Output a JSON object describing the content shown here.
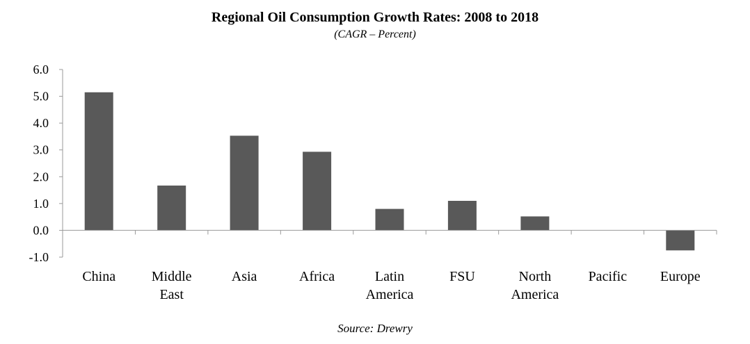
{
  "chart_data": {
    "type": "bar",
    "title": "Regional Oil Consumption Growth Rates: 2008 to 2018",
    "subtitle": "(CAGR – Percent)",
    "source": "Source: Drewry",
    "xlabel": "",
    "ylabel": "",
    "ylim": [
      -1.0,
      6.0
    ],
    "yticks": [
      6.0,
      5.0,
      4.0,
      3.0,
      2.0,
      1.0,
      0.0,
      -1.0
    ],
    "ytick_labels": [
      "6.0",
      "5.0",
      "4.0",
      "3.0",
      "2.0",
      "1.0",
      "0.0",
      "-1.0"
    ],
    "grid": false,
    "legend": "none",
    "categories": [
      [
        "China"
      ],
      [
        "Middle",
        "East"
      ],
      [
        "Asia"
      ],
      [
        "Africa"
      ],
      [
        "Latin",
        "America"
      ],
      [
        "FSU"
      ],
      [
        "North",
        "America"
      ],
      [
        "Pacific"
      ],
      [
        "Europe"
      ]
    ],
    "values": [
      5.15,
      1.67,
      3.53,
      2.93,
      0.8,
      1.1,
      0.52,
      0.0,
      -0.75
    ],
    "bar_color": "#595959",
    "axis_color": "#999999"
  }
}
